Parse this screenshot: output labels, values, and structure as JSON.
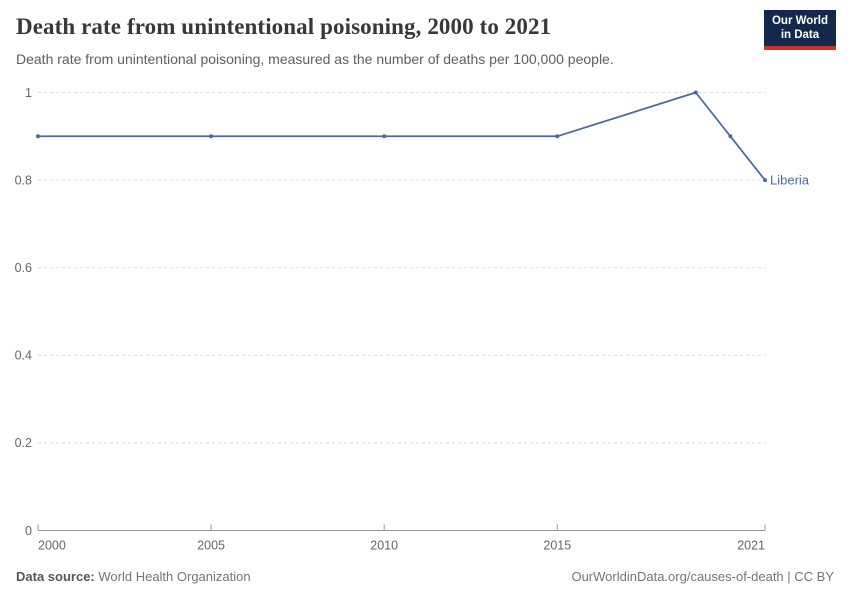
{
  "header": {
    "title": "Death rate from unintentional poisoning, 2000 to 2021",
    "subtitle": "Death rate from unintentional poisoning, measured as the number of deaths per 100,000 people.",
    "logo": {
      "line1": "Our World",
      "line2": "in Data"
    }
  },
  "footer": {
    "source_label": "Data source:",
    "source_value": "World Health Organization",
    "citation": "OurWorldinData.org/causes-of-death | CC BY"
  },
  "colors": {
    "line": "#4c6a9c",
    "grid": "#dadada",
    "axis": "#989898",
    "tick_label": "#666666",
    "end_label": "#4c6a9c",
    "logo_bg": "#12294b",
    "logo_red": "#cf302b"
  },
  "chart_data": {
    "type": "line",
    "title": "Death rate from unintentional poisoning, 2000 to 2021",
    "subtitle": "Death rate from unintentional poisoning, measured as the number of deaths per 100,000 people.",
    "xlabel": "",
    "ylabel": "",
    "x": [
      2000,
      2005,
      2010,
      2015,
      2019,
      2020,
      2021
    ],
    "series": [
      {
        "name": "Liberia",
        "values": [
          0.9,
          0.9,
          0.9,
          0.9,
          1.0,
          0.9,
          0.8
        ]
      }
    ],
    "x_ticks": [
      2000,
      2005,
      2010,
      2015,
      2021
    ],
    "y_ticks": [
      0,
      0.2,
      0.4,
      0.6,
      0.8,
      1
    ],
    "y_tick_labels": [
      "0",
      "0.2",
      "0.4",
      "0.6",
      "0.8",
      "1"
    ],
    "xlim": [
      2000,
      2021
    ],
    "ylim": [
      0,
      1
    ],
    "grid": "horizontal-dashed",
    "legend": "line-end-label",
    "end_label": "Liberia",
    "marker": "dot"
  }
}
